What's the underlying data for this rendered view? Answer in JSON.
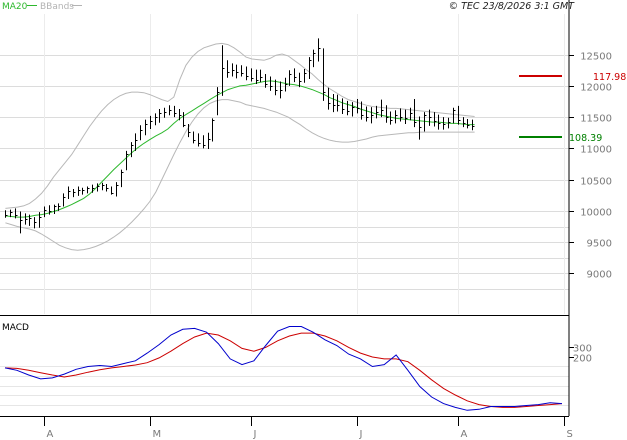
{
  "header": {
    "legend": [
      {
        "label": "MA20",
        "color": "#2db82d"
      },
      {
        "label": "BBands",
        "color": "#b3b3b3"
      }
    ],
    "copyright": "© TEC 23/8/2026 3:1 GMT"
  },
  "price_markers": {
    "upper": {
      "value": "117.98",
      "color": "#cc0000"
    },
    "lower": {
      "value": "108.39",
      "color": "#008000"
    }
  },
  "macd_label": "MACD",
  "chart_data": [
    {
      "type": "ohlc",
      "y_ticks": [
        {
          "label": "12500",
          "value": 125
        },
        {
          "label": "12000",
          "value": 120
        },
        {
          "label": "11500",
          "value": 115
        },
        {
          "label": "11000",
          "value": 110
        },
        {
          "label": "10500",
          "value": 105
        },
        {
          "label": "10000",
          "value": 100
        },
        {
          "label": "9500",
          "value": 95
        },
        {
          "label": "9000",
          "value": 90
        }
      ],
      "ylim": [
        83.5,
        131.5
      ],
      "x_ticks": [
        "A",
        "M",
        "J",
        "J",
        "A",
        "S"
      ],
      "x_tick_index": [
        8,
        30,
        51,
        73,
        94,
        116
      ],
      "n_slots": 117,
      "bars": [
        [
          100.1,
          98.9,
          99.4
        ],
        [
          100.2,
          99.0,
          99.8
        ],
        [
          100.4,
          98.8,
          99.3
        ],
        [
          99.9,
          96.4,
          98.6
        ],
        [
          99.6,
          97.8,
          98.7
        ],
        [
          99.4,
          97.6,
          98.8
        ],
        [
          99.0,
          97.2,
          98.3
        ],
        [
          99.8,
          97.3,
          99.1
        ],
        [
          100.7,
          99.0,
          100.2
        ],
        [
          100.9,
          99.4,
          99.9
        ],
        [
          101.0,
          99.5,
          100.7
        ],
        [
          101.2,
          100.0,
          100.7
        ],
        [
          102.8,
          100.7,
          102.3
        ],
        [
          103.9,
          101.9,
          103.2
        ],
        [
          103.5,
          102.2,
          103.0
        ],
        [
          103.9,
          102.4,
          103.4
        ],
        [
          103.7,
          102.6,
          103.3
        ],
        [
          103.9,
          102.8,
          103.6
        ],
        [
          104.2,
          102.9,
          103.7
        ],
        [
          104.4,
          103.1,
          103.9
        ],
        [
          104.5,
          103.3,
          104.1
        ],
        [
          104.3,
          103.1,
          103.6
        ],
        [
          103.9,
          102.6,
          102.9
        ],
        [
          104.6,
          102.3,
          104.1
        ],
        [
          106.6,
          103.8,
          106.3
        ],
        [
          109.6,
          106.5,
          109.1
        ],
        [
          111.0,
          108.6,
          110.5
        ],
        [
          112.4,
          109.6,
          111.4
        ],
        [
          113.7,
          111.3,
          113.0
        ],
        [
          114.6,
          112.1,
          113.9
        ],
        [
          115.2,
          113.1,
          114.4
        ],
        [
          115.6,
          113.7,
          115.1
        ],
        [
          116.3,
          114.1,
          115.6
        ],
        [
          116.5,
          114.9,
          115.8
        ],
        [
          116.9,
          115.3,
          116.1
        ],
        [
          116.8,
          115.0,
          115.7
        ],
        [
          116.3,
          114.5,
          115.3
        ],
        [
          115.8,
          113.4,
          113.8
        ],
        [
          113.9,
          111.8,
          112.6
        ],
        [
          112.7,
          110.8,
          111.3
        ],
        [
          112.4,
          110.3,
          110.9
        ],
        [
          112.1,
          110.0,
          110.6
        ],
        [
          112.5,
          109.9,
          111.5
        ],
        [
          114.8,
          111.1,
          114.6
        ],
        [
          119.8,
          115.3,
          119.0
        ],
        [
          126.5,
          118.4,
          122.8
        ],
        [
          124.1,
          121.3,
          122.2
        ],
        [
          123.6,
          121.5,
          122.5
        ],
        [
          123.4,
          121.2,
          122.3
        ],
        [
          123.3,
          121.5,
          122.0
        ],
        [
          123.1,
          120.9,
          121.6
        ],
        [
          122.8,
          120.7,
          121.3
        ],
        [
          122.6,
          120.3,
          121.0
        ],
        [
          122.6,
          120.6,
          121.5
        ],
        [
          121.9,
          119.7,
          120.3
        ],
        [
          121.5,
          119.2,
          120.0
        ],
        [
          121.0,
          118.5,
          119.3
        ],
        [
          120.7,
          118.0,
          119.4
        ],
        [
          121.3,
          119.1,
          120.3
        ],
        [
          122.5,
          120.0,
          121.9
        ],
        [
          122.8,
          120.6,
          121.4
        ],
        [
          122.1,
          119.8,
          120.7
        ],
        [
          122.7,
          120.5,
          122.1
        ],
        [
          124.6,
          121.1,
          124.2
        ],
        [
          125.8,
          123.0,
          125.3
        ],
        [
          127.6,
          123.9,
          126.1
        ],
        [
          126.0,
          117.6,
          119.0
        ],
        [
          119.7,
          116.2,
          117.2
        ],
        [
          118.7,
          115.8,
          117.0
        ],
        [
          118.6,
          115.9,
          116.9
        ],
        [
          118.0,
          115.5,
          116.3
        ],
        [
          117.6,
          115.3,
          116.0
        ],
        [
          117.4,
          115.1,
          116.6
        ],
        [
          117.9,
          115.6,
          116.4
        ],
        [
          117.5,
          114.6,
          115.4
        ],
        [
          116.7,
          114.3,
          115.0
        ],
        [
          116.6,
          114.0,
          115.4
        ],
        [
          116.8,
          114.8,
          115.8
        ],
        [
          117.8,
          115.0,
          116.2
        ],
        [
          116.9,
          114.1,
          115.1
        ],
        [
          115.9,
          113.8,
          114.6
        ],
        [
          116.1,
          114.0,
          115.3
        ],
        [
          116.4,
          114.3,
          115.0
        ],
        [
          116.2,
          113.9,
          114.8
        ],
        [
          116.5,
          114.5,
          115.6
        ],
        [
          117.9,
          113.4,
          114.2
        ],
        [
          115.1,
          111.4,
          113.5
        ],
        [
          115.8,
          112.7,
          115.3
        ],
        [
          116.2,
          113.6,
          115.0
        ],
        [
          115.8,
          113.5,
          114.4
        ],
        [
          115.4,
          113.0,
          114.0
        ],
        [
          115.0,
          113.0,
          113.9
        ],
        [
          114.9,
          113.2,
          114.3
        ],
        [
          116.5,
          114.0,
          116.1
        ],
        [
          116.8,
          113.8,
          114.5
        ],
        [
          115.0,
          113.4,
          114.0
        ],
        [
          114.7,
          113.2,
          113.8
        ],
        [
          114.6,
          112.9,
          113.6
        ]
      ],
      "ma20": [
        99.2,
        99.1,
        99.0,
        99.0,
        99.1,
        99.3,
        99.4,
        99.6,
        99.9,
        100.2,
        100.6,
        101.0,
        101.5,
        102.0,
        102.7,
        103.6,
        104.6,
        105.6,
        106.6,
        107.5,
        108.4,
        109.3,
        110.1,
        110.8,
        111.4,
        112.0,
        112.5,
        113.1,
        114.0,
        114.8,
        115.4,
        116.0,
        116.6,
        117.2,
        117.8,
        118.4,
        118.9,
        119.4,
        119.7,
        120.0,
        120.1,
        120.3,
        120.5,
        120.7,
        120.8,
        120.7,
        120.5,
        120.3,
        120.2,
        120.0,
        119.7,
        119.4,
        119.0,
        118.6,
        118.1,
        117.7,
        117.3,
        117.0,
        116.7,
        116.3,
        116.0,
        115.7,
        115.4,
        115.2,
        115.0,
        114.8,
        114.7,
        114.6,
        114.5,
        114.4,
        114.3,
        114.2,
        114.2,
        114.1,
        114.0,
        114.0,
        113.9,
        113.8,
        113.8
      ],
      "bb_upper": [
        100.4,
        100.5,
        100.6,
        100.8,
        101.2,
        101.9,
        102.8,
        104.0,
        105.4,
        106.6,
        107.8,
        109.0,
        110.5,
        112.0,
        113.5,
        114.8,
        116.0,
        117.0,
        117.8,
        118.4,
        118.8,
        119.0,
        119.0,
        118.9,
        118.6,
        118.2,
        117.8,
        117.5,
        118.2,
        121.0,
        123.3,
        124.6,
        125.5,
        126.1,
        126.4,
        126.7,
        126.8,
        126.6,
        126.1,
        125.4,
        124.6,
        124.3,
        124.2,
        124.1,
        124.4,
        124.9,
        125.1,
        124.8,
        124.1,
        123.4,
        122.6,
        121.9,
        121.0,
        120.2,
        119.5,
        118.9,
        118.3,
        117.8,
        117.5,
        117.2,
        116.9,
        116.7,
        116.6,
        116.5,
        116.4,
        116.4,
        116.3,
        116.2,
        116.1,
        116.0,
        115.9,
        115.8,
        115.7,
        115.6,
        115.5,
        115.4,
        115.3,
        115.2,
        115.1
      ],
      "bb_lower": [
        98.1,
        97.8,
        97.5,
        97.3,
        97.1,
        96.8,
        96.3,
        95.7,
        95.1,
        94.5,
        94.1,
        93.8,
        93.7,
        93.8,
        94.0,
        94.3,
        94.7,
        95.2,
        95.8,
        96.5,
        97.3,
        98.2,
        99.2,
        100.3,
        101.5,
        103.0,
        105.0,
        107.0,
        109.0,
        110.9,
        112.7,
        114.2,
        115.5,
        116.5,
        117.2,
        117.6,
        117.8,
        117.8,
        117.6,
        117.4,
        117.0,
        116.8,
        116.6,
        116.4,
        116.1,
        115.8,
        115.4,
        115.0,
        114.4,
        113.8,
        113.1,
        112.5,
        112.0,
        111.6,
        111.3,
        111.1,
        111.0,
        111.0,
        111.1,
        111.3,
        111.5,
        111.8,
        112.0,
        112.1,
        112.2,
        112.3,
        112.4,
        112.5,
        112.5,
        112.6,
        112.6,
        112.6,
        112.6,
        112.6,
        112.6,
        112.6,
        112.6,
        112.6,
        112.6
      ]
    },
    {
      "type": "line",
      "title": "MACD",
      "y_ticks": [
        {
          "label": "300",
          "value": 3.0
        },
        {
          "label": "200",
          "value": 2.0
        }
      ],
      "ylim": [
        -4.2,
        6.3
      ],
      "macd": [
        0.85,
        0.6,
        0.1,
        -0.3,
        -0.2,
        0.2,
        0.7,
        1.0,
        1.1,
        1.0,
        1.3,
        1.6,
        2.4,
        3.3,
        4.3,
        4.9,
        5.0,
        4.6,
        3.4,
        1.8,
        1.2,
        1.6,
        3.2,
        4.7,
        5.2,
        5.2,
        4.6,
        3.8,
        3.2,
        2.3,
        1.8,
        1.0,
        1.2,
        2.2,
        0.6,
        -1.1,
        -2.2,
        -2.9,
        -3.3,
        -3.6,
        -3.5,
        -3.2,
        -3.2,
        -3.2,
        -3.1,
        -3.0,
        -2.8,
        -2.9
      ],
      "signal": [
        0.85,
        0.8,
        0.6,
        0.35,
        0.1,
        -0.1,
        0.1,
        0.4,
        0.65,
        0.85,
        1.0,
        1.15,
        1.4,
        1.9,
        2.6,
        3.4,
        4.1,
        4.5,
        4.3,
        3.7,
        2.9,
        2.6,
        3.0,
        3.7,
        4.2,
        4.5,
        4.5,
        4.2,
        3.7,
        3.0,
        2.4,
        2.0,
        1.8,
        1.8,
        1.5,
        0.6,
        -0.4,
        -1.3,
        -2.0,
        -2.6,
        -3.0,
        -3.2,
        -3.3,
        -3.3,
        -3.2,
        -3.1,
        -3.0,
        -2.9
      ]
    }
  ]
}
